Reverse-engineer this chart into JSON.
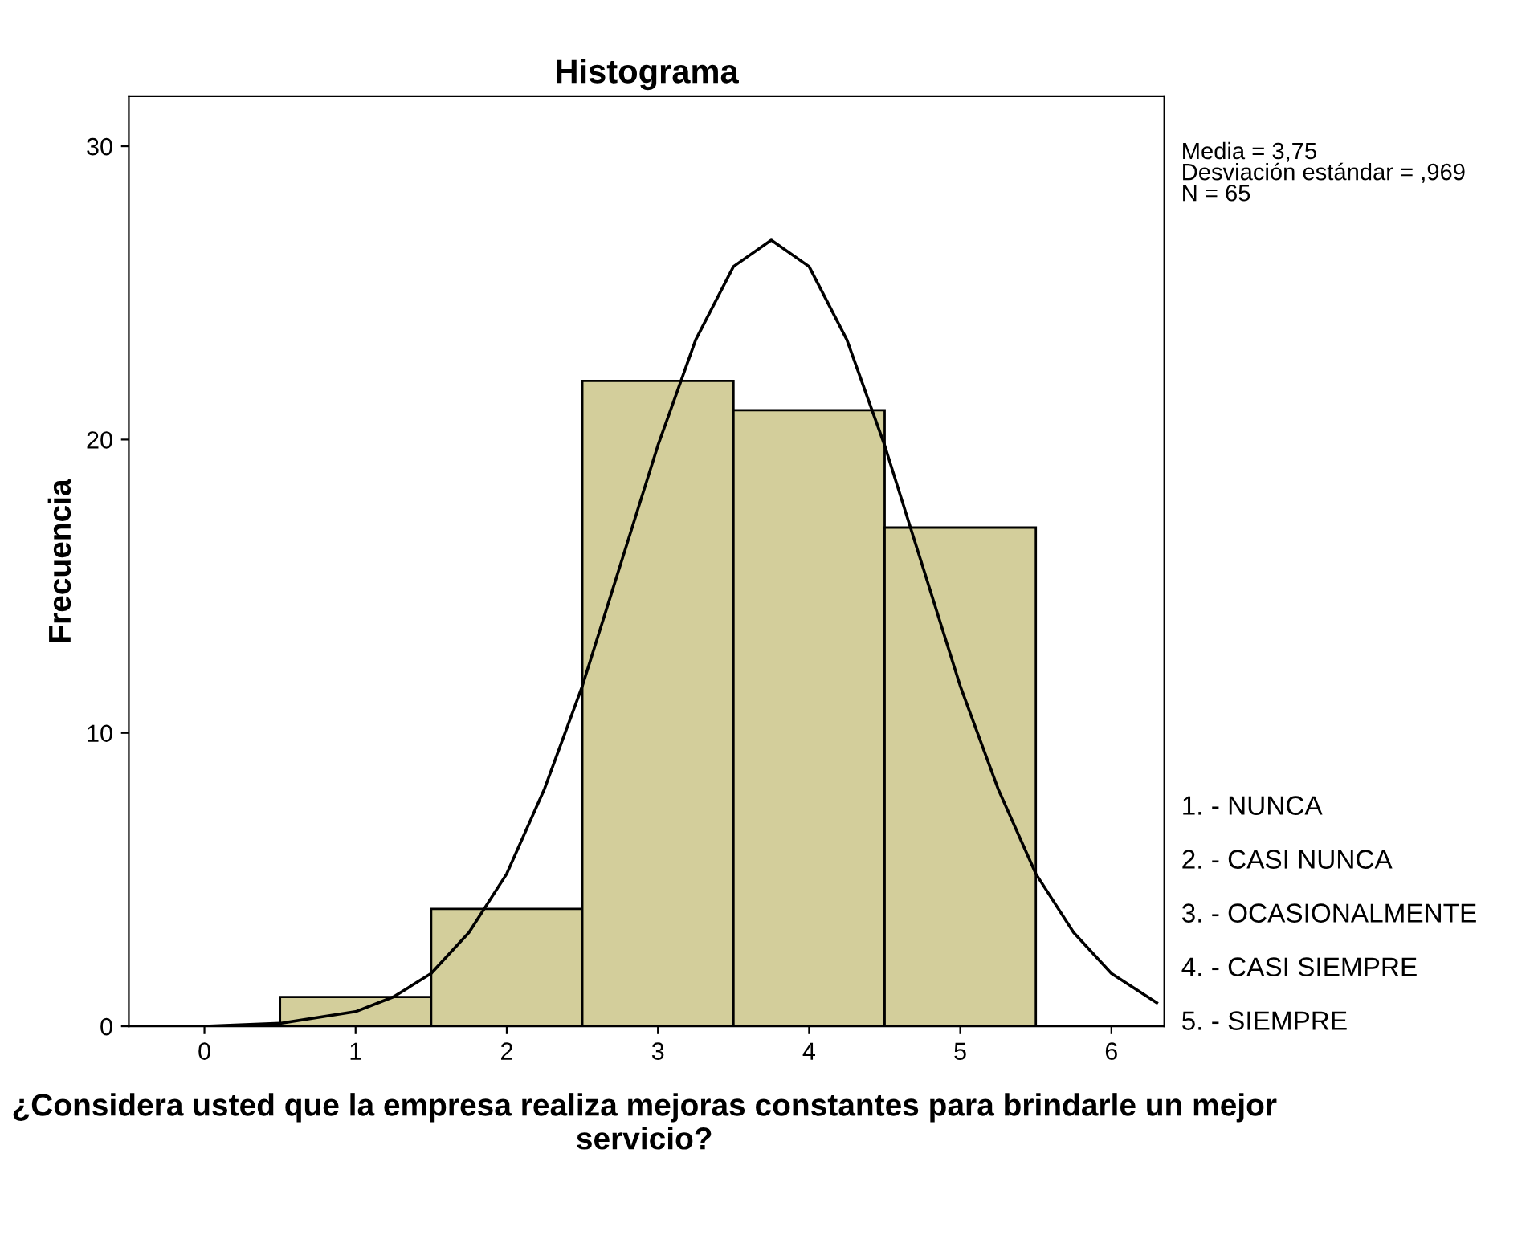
{
  "chart_data": {
    "type": "histogram",
    "title": "Histograma",
    "xlabel": "¿Considera usted que la empresa realiza mejoras constantes para brindarle un mejor servicio?",
    "ylabel": "Frecuencia",
    "bins": [
      0.5,
      1.5,
      2.5,
      3.5,
      4.5,
      5.5
    ],
    "values": [
      1,
      4,
      22,
      21,
      17
    ],
    "color": "#d3ce9b",
    "series": [
      {
        "type": "line",
        "color": "#000000",
        "x": [
          -0.3,
          0,
          0.5,
          1,
          1.25,
          1.5,
          1.75,
          2,
          2.25,
          2.5,
          2.75,
          3,
          3.25,
          3.5,
          3.75,
          4,
          4.25,
          4.5,
          4.75,
          5,
          5.25,
          5.5,
          5.75,
          6,
          6.3
        ],
        "values": [
          0.0,
          0.0,
          0.1,
          0.5,
          1.0,
          1.8,
          3.2,
          5.2,
          8.1,
          11.6,
          15.7,
          19.8,
          23.4,
          25.9,
          26.8,
          25.9,
          23.4,
          19.8,
          15.7,
          11.6,
          8.1,
          5.2,
          3.2,
          1.8,
          0.8
        ]
      }
    ],
    "xlim": [
      -0.5,
      6.35
    ],
    "ylim": [
      0,
      31.7
    ],
    "xticks": [
      0,
      1,
      2,
      3,
      4,
      5,
      6
    ],
    "yticks": [
      0,
      10,
      20,
      30
    ],
    "grid": false,
    "annotations": [
      "Media = 3,75\nDesviación estándar = ,969\nN = 65",
      "1. - NUNCA",
      "2. - CASI NUNCA",
      "3. - OCASIONALMENTE",
      "4. - CASI SIEMPRE",
      "5. - SIEMPRE"
    ]
  }
}
